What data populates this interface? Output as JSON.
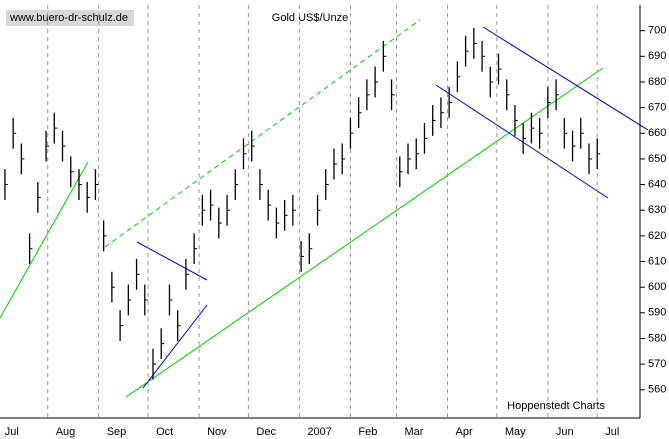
{
  "chart_data": {
    "type": "ohlc",
    "title": "Gold US$/Unze",
    "source": "www.buero-dr-schulz.de",
    "credit": "Hoppenstedt Charts",
    "color": "#000000",
    "x": [
      5,
      10,
      15,
      20,
      25,
      30,
      35,
      40,
      45,
      50,
      55,
      60,
      65,
      70,
      75,
      80,
      85,
      90,
      95,
      100,
      105,
      110,
      115,
      120,
      125,
      130,
      135,
      140,
      145,
      150,
      155,
      160,
      165,
      170,
      175,
      180,
      185,
      190,
      195,
      200,
      205,
      210,
      215,
      220,
      225,
      230,
      235,
      240,
      245,
      250,
      255,
      260,
      265,
      270,
      275,
      280,
      285,
      290,
      295,
      300,
      305,
      310,
      315,
      320,
      325,
      330,
      335,
      340,
      345,
      350,
      355,
      360,
      365
    ],
    "high": [
      646,
      666,
      656,
      621,
      641,
      661,
      668,
      661,
      651,
      646,
      641,
      646,
      626,
      606,
      591,
      601,
      611,
      601,
      576,
      584,
      601,
      591,
      611,
      621,
      636,
      638,
      631,
      636,
      646,
      658,
      661,
      646,
      638,
      631,
      634,
      636,
      618,
      621,
      636,
      646,
      654,
      656,
      666,
      674,
      681,
      686,
      696,
      681,
      651,
      656,
      658,
      664,
      671,
      674,
      678,
      688,
      698,
      701,
      696,
      686,
      691,
      681,
      671,
      664,
      668,
      666,
      678,
      681,
      666,
      661,
      666,
      656,
      658
    ],
    "low": [
      634,
      654,
      644,
      609,
      629,
      649,
      656,
      649,
      639,
      634,
      629,
      634,
      614,
      594,
      579,
      589,
      599,
      589,
      564,
      572,
      589,
      579,
      599,
      609,
      624,
      626,
      619,
      624,
      634,
      646,
      649,
      634,
      626,
      619,
      622,
      624,
      606,
      609,
      624,
      634,
      642,
      644,
      654,
      662,
      669,
      674,
      684,
      669,
      639,
      644,
      646,
      652,
      659,
      662,
      666,
      676,
      686,
      689,
      684,
      674,
      679,
      669,
      659,
      652,
      656,
      654,
      666,
      669,
      654,
      649,
      654,
      644,
      646
    ],
    "close": [
      640,
      660,
      650,
      615,
      635,
      655,
      662,
      655,
      645,
      640,
      635,
      640,
      620,
      600,
      585,
      595,
      605,
      595,
      570,
      578,
      595,
      585,
      605,
      615,
      630,
      632,
      625,
      630,
      640,
      652,
      655,
      640,
      632,
      625,
      628,
      630,
      612,
      615,
      630,
      640,
      648,
      650,
      660,
      668,
      675,
      680,
      690,
      675,
      645,
      650,
      652,
      658,
      665,
      668,
      672,
      682,
      692,
      695,
      690,
      680,
      685,
      675,
      665,
      658,
      662,
      660,
      672,
      675,
      660,
      655,
      660,
      650,
      652
    ],
    "xlim": [
      2,
      391
    ],
    "xticks": [
      {
        "value": 0,
        "label": "Jul"
      },
      {
        "value": 31,
        "label": "Aug"
      },
      {
        "value": 62,
        "label": "Sep"
      },
      {
        "value": 92,
        "label": "Oct"
      },
      {
        "value": 123,
        "label": "Nov"
      },
      {
        "value": 153,
        "label": "Dec"
      },
      {
        "value": 184,
        "label": "2007"
      },
      {
        "value": 215,
        "label": "Feb"
      },
      {
        "value": 243,
        "label": "Mar"
      },
      {
        "value": 274,
        "label": "Apr"
      },
      {
        "value": 304,
        "label": "May"
      },
      {
        "value": 335,
        "label": "Jun"
      },
      {
        "value": 365,
        "label": "Jul"
      }
    ],
    "ylim": [
      549,
      710
    ],
    "yticks": [
      560,
      570,
      580,
      590,
      600,
      610,
      620,
      630,
      640,
      650,
      660,
      670,
      680,
      690,
      700
    ],
    "grid": true
  }
}
